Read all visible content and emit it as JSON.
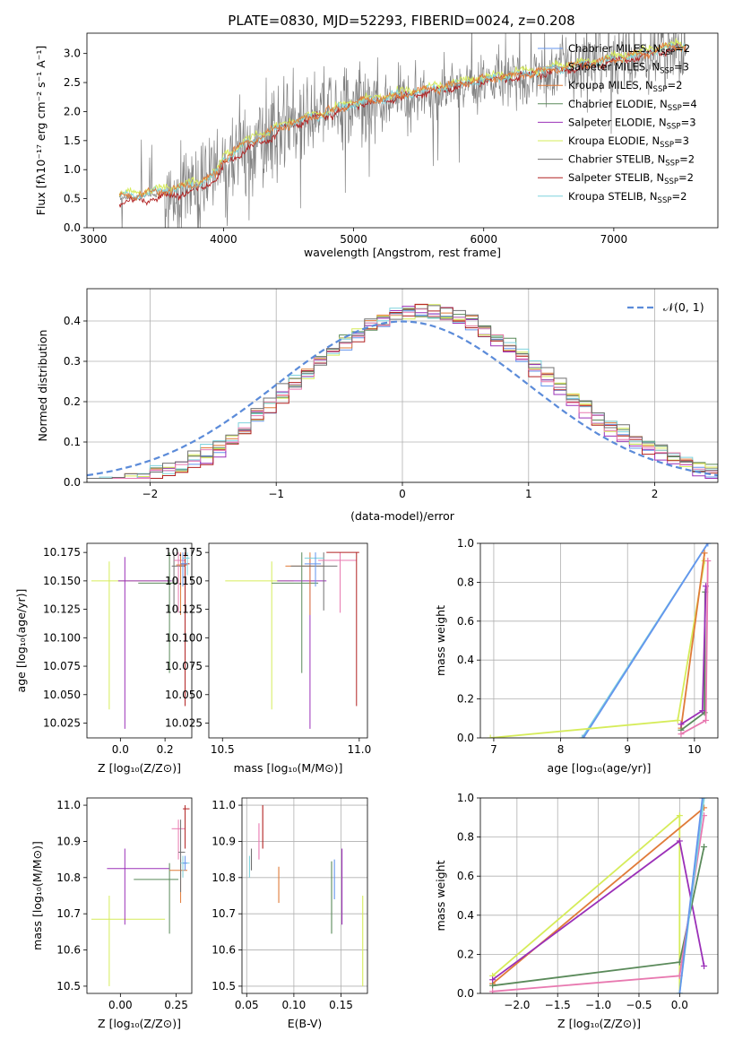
{
  "figure_title": "PLATE=0830, MJD=52293, FIBERID=0024, z=0.208",
  "colors": {
    "Chabrier MILES": "#6495ed",
    "Salpeter MILES": "#a8a8a8",
    "Kroupa MILES": "#e07b39",
    "Chabrier ELODIE": "#5a8a5a",
    "Salpeter ELODIE": "#9b30b8",
    "Kroupa ELODIE": "#d6ec5a",
    "Chabrier STELIB": "#707070",
    "Salpeter STELIB": "#b22222",
    "Kroupa STELIB": "#7fd3dd",
    "pink": "#e879b0",
    "gauss": "#5b8bd9"
  },
  "chart_data": [
    {
      "id": "spectrum",
      "type": "line",
      "title": "PLATE=0830, MJD=52293, FIBERID=0024, z=0.208",
      "xlabel": "wavelength [Angstrom, rest frame]",
      "ylabel": "Flux [fλ10⁻¹⁷ erg cm⁻² s⁻¹ A⁻¹]",
      "xlim": [
        2950,
        7800
      ],
      "ylim": [
        0,
        3.35
      ],
      "xticks": [
        "3000",
        "4000",
        "5000",
        "6000",
        "7000"
      ],
      "yticks": [
        "0.0",
        "0.5",
        "1.0",
        "1.5",
        "2.0",
        "2.5",
        "3.0"
      ],
      "legend_position": "top-right",
      "legend": [
        {
          "label": "Chabrier MILES, N",
          "sub": "SSP",
          "tail": "=2"
        },
        {
          "label": "Salpeter MILES, N",
          "sub": "SSP",
          "tail": "=3"
        },
        {
          "label": "Kroupa MILES, N",
          "sub": "SSP",
          "tail": "=2"
        },
        {
          "label": "Chabrier ELODIE, N",
          "sub": "SSP",
          "tail": "=4"
        },
        {
          "label": "Salpeter ELODIE, N",
          "sub": "SSP",
          "tail": "=3"
        },
        {
          "label": "Kroupa ELODIE, N",
          "sub": "SSP",
          "tail": "=3"
        },
        {
          "label": "Chabrier STELIB, N",
          "sub": "SSP",
          "tail": "=2"
        },
        {
          "label": "Salpeter STELIB, N",
          "sub": "SSP",
          "tail": "=2"
        },
        {
          "label": "Kroupa STELIB, N",
          "sub": "SSP",
          "tail": "=2"
        }
      ],
      "continuum_points": [
        [
          3200,
          0.5
        ],
        [
          3500,
          0.58
        ],
        [
          3800,
          0.72
        ],
        [
          3950,
          0.9
        ],
        [
          4000,
          1.15
        ],
        [
          4200,
          1.45
        ],
        [
          4500,
          1.75
        ],
        [
          4800,
          1.95
        ],
        [
          5000,
          2.1
        ],
        [
          5300,
          2.22
        ],
        [
          5600,
          2.35
        ],
        [
          5900,
          2.48
        ],
        [
          6200,
          2.58
        ],
        [
          6500,
          2.68
        ],
        [
          6800,
          2.78
        ],
        [
          7100,
          2.9
        ],
        [
          7400,
          3.05
        ],
        [
          7550,
          3.1
        ]
      ]
    },
    {
      "id": "residuals",
      "type": "line",
      "xlabel": "(data-model)/error",
      "ylabel": "Normed distribution",
      "xlim": [
        -2.5,
        2.5
      ],
      "ylim": [
        0,
        0.48
      ],
      "xticks": [
        "−2",
        "−1",
        "0",
        "1",
        "2"
      ],
      "yticks": [
        "0.0",
        "0.1",
        "0.2",
        "0.3",
        "0.4"
      ],
      "grid": true,
      "legend_position": "top-right",
      "legend": "𝒩(0, 1)",
      "gaussian": {
        "mean": 0,
        "sigma": 1
      },
      "hist_bin_width": 0.1
    },
    {
      "id": "z_age",
      "type": "scatter",
      "xlabel": "Z [log₁₀(Z/Z⊙)]",
      "ylabel": "age  [log₁₀(age/yr)]",
      "xlim": [
        -0.15,
        0.32
      ],
      "ylim": [
        10.012,
        10.183
      ],
      "xticks": [
        "0.0",
        "0.2"
      ],
      "yticks": [
        "10.025",
        "10.050",
        "10.075",
        "10.100",
        "10.125",
        "10.150",
        "10.175"
      ],
      "points": [
        {
          "c": "Kroupa ELODIE",
          "x": -0.05,
          "y": 10.15,
          "xl": -0.13,
          "xh": 0.22,
          "yl": 10.037,
          "yh": 10.167
        },
        {
          "c": "Salpeter ELODIE",
          "x": 0.02,
          "y": 10.15,
          "xl": -0.01,
          "xh": 0.23,
          "yl": 10.02,
          "yh": 10.171
        },
        {
          "c": "Chabrier ELODIE",
          "x": 0.22,
          "y": 10.148,
          "xl": 0.08,
          "xh": 0.26,
          "yl": 10.069,
          "yh": 10.175
        },
        {
          "c": "Chabrier STELIB",
          "x": 0.24,
          "y": 10.163,
          "xl": 0.23,
          "xh": 0.29,
          "yl": 10.124,
          "yh": 10.175
        },
        {
          "c": "pink",
          "x": 0.26,
          "y": 10.168,
          "xl": 0.24,
          "xh": 0.29,
          "yl": 10.122,
          "yh": 10.175
        },
        {
          "c": "Kroupa MILES",
          "x": 0.27,
          "y": 10.164,
          "xl": 0.25,
          "xh": 0.3,
          "yl": 10.12,
          "yh": 10.175
        },
        {
          "c": "Salpeter STELIB",
          "x": 0.29,
          "y": 10.165,
          "xl": 0.27,
          "xh": 0.31,
          "yl": 10.04,
          "yh": 10.175
        },
        {
          "c": "Kroupa STELIB",
          "x": 0.3,
          "y": 10.17,
          "xl": 0.28,
          "xh": 0.31,
          "yl": 10.155,
          "yh": 10.175
        },
        {
          "c": "Chabrier MILES",
          "x": 0.28,
          "y": 10.165,
          "xl": 0.27,
          "xh": 0.3,
          "yl": 10.145,
          "yh": 10.175
        }
      ]
    },
    {
      "id": "mass_age",
      "type": "scatter",
      "xlabel": "mass [log₁₀(M/M⊙)]",
      "xlim": [
        10.45,
        11.03
      ],
      "ylim": [
        10.012,
        10.183
      ],
      "xticks": [
        "10.5",
        "11.0"
      ],
      "yticks": [
        "10.025",
        "10.050",
        "10.075",
        "10.100",
        "10.125",
        "10.150",
        "10.175"
      ],
      "points": [
        {
          "c": "Kroupa ELODIE",
          "x": 10.68,
          "y": 10.15,
          "xl": 10.51,
          "xh": 10.76,
          "yl": 10.037,
          "yh": 10.167
        },
        {
          "c": "Salpeter ELODIE",
          "x": 10.82,
          "y": 10.15,
          "xl": 10.7,
          "xh": 10.88,
          "yl": 10.02,
          "yh": 10.171
        },
        {
          "c": "Chabrier ELODIE",
          "x": 10.79,
          "y": 10.148,
          "xl": 10.68,
          "xh": 10.85,
          "yl": 10.069,
          "yh": 10.175
        },
        {
          "c": "Kroupa MILES",
          "x": 10.82,
          "y": 10.163,
          "xl": 10.73,
          "xh": 10.87,
          "yl": 10.12,
          "yh": 10.175
        },
        {
          "c": "Chabrier STELIB",
          "x": 10.87,
          "y": 10.163,
          "xl": 10.75,
          "xh": 10.92,
          "yl": 10.124,
          "yh": 10.175
        },
        {
          "c": "pink",
          "x": 10.93,
          "y": 10.168,
          "xl": 10.85,
          "xh": 10.99,
          "yl": 10.122,
          "yh": 10.175
        },
        {
          "c": "Salpeter STELIB",
          "x": 10.99,
          "y": 10.175,
          "xl": 10.88,
          "xh": 11.0,
          "yl": 10.04,
          "yh": 10.175
        },
        {
          "c": "Kroupa STELIB",
          "x": 10.84,
          "y": 10.17,
          "xl": 10.8,
          "xh": 10.87,
          "yl": 10.155,
          "yh": 10.175
        },
        {
          "c": "Chabrier MILES",
          "x": 10.84,
          "y": 10.165,
          "xl": 10.8,
          "xh": 10.86,
          "yl": 10.145,
          "yh": 10.175
        }
      ]
    },
    {
      "id": "age_weight",
      "type": "line",
      "xlabel": "age  [log₁₀(age/yr)]",
      "ylabel": "mass weight",
      "xlim": [
        6.8,
        10.35
      ],
      "ylim": [
        0,
        1
      ],
      "xticks": [
        "7",
        "8",
        "9",
        "10"
      ],
      "yticks": [
        "0.0",
        "0.2",
        "0.4",
        "0.6",
        "0.8",
        "1.0"
      ],
      "grid": true,
      "series": [
        {
          "c": "Kroupa STELIB",
          "pts": [
            [
              8.32,
              0
            ],
            [
              10.2,
              1.0
            ]
          ]
        },
        {
          "c": "Chabrier MILES",
          "pts": [
            [
              8.34,
              0
            ],
            [
              10.2,
              1.0
            ]
          ]
        },
        {
          "c": "Kroupa ELODIE",
          "pts": [
            [
              6.95,
              0
            ],
            [
              9.75,
              0.09
            ],
            [
              10.15,
              0.91
            ]
          ]
        },
        {
          "c": "Kroupa MILES",
          "pts": [
            [
              9.8,
              0.05
            ],
            [
              10.15,
              0.95
            ]
          ]
        },
        {
          "c": "Chabrier ELODIE",
          "pts": [
            [
              9.8,
              0.04
            ],
            [
              10.15,
              0.13
            ],
            [
              10.16,
              0.75
            ]
          ]
        },
        {
          "c": "Salpeter ELODIE",
          "pts": [
            [
              9.8,
              0.07
            ],
            [
              10.12,
              0.14
            ],
            [
              10.17,
              0.78
            ]
          ]
        },
        {
          "c": "pink",
          "pts": [
            [
              9.8,
              0.02
            ],
            [
              10.17,
              0.09
            ],
            [
              10.2,
              0.91
            ]
          ]
        }
      ]
    },
    {
      "id": "z_mass",
      "type": "scatter",
      "xlabel": "Z [log₁₀(Z/Z⊙)]",
      "ylabel": "mass [log₁₀(M/M⊙)]",
      "xlim": [
        -0.15,
        0.32
      ],
      "ylim": [
        10.48,
        11.02
      ],
      "xticks": [
        "0.00",
        "0.25"
      ],
      "yticks": [
        "10.5",
        "10.6",
        "10.7",
        "10.8",
        "10.9",
        "11.0"
      ],
      "points": [
        {
          "c": "Kroupa ELODIE",
          "x": -0.05,
          "y": 10.685,
          "xl": -0.13,
          "xh": 0.2,
          "yl": 10.5,
          "yh": 10.75
        },
        {
          "c": "Salpeter ELODIE",
          "x": 0.02,
          "y": 10.825,
          "xl": -0.06,
          "xh": 0.22,
          "yl": 10.67,
          "yh": 10.88
        },
        {
          "c": "Chabrier ELODIE",
          "x": 0.22,
          "y": 10.795,
          "xl": 0.06,
          "xh": 0.26,
          "yl": 10.645,
          "yh": 10.84
        },
        {
          "c": "Kroupa MILES",
          "x": 0.27,
          "y": 10.82,
          "xl": 0.22,
          "xh": 0.3,
          "yl": 10.73,
          "yh": 10.85
        },
        {
          "c": "pink",
          "x": 0.26,
          "y": 10.935,
          "xl": 0.23,
          "xh": 0.29,
          "yl": 10.85,
          "yh": 10.96
        },
        {
          "c": "Chabrier STELIB",
          "x": 0.27,
          "y": 10.87,
          "xl": 0.26,
          "xh": 0.29,
          "yl": 10.76,
          "yh": 10.96
        },
        {
          "c": "Salpeter STELIB",
          "x": 0.29,
          "y": 10.99,
          "xl": 0.28,
          "xh": 0.31,
          "yl": 10.88,
          "yh": 11.0
        },
        {
          "c": "Kroupa STELIB",
          "x": 0.28,
          "y": 10.84,
          "xl": 0.27,
          "xh": 0.31,
          "yl": 10.8,
          "yh": 10.86
        },
        {
          "c": "Chabrier MILES",
          "x": 0.29,
          "y": 10.84,
          "xl": 0.28,
          "xh": 0.3,
          "yl": 10.82,
          "yh": 10.86
        }
      ]
    },
    {
      "id": "ebv_mass",
      "type": "scatter",
      "xlabel": "E(B-V)",
      "xlim": [
        0.045,
        0.178
      ],
      "ylim": [
        10.48,
        11.02
      ],
      "xticks": [
        "0.05",
        "0.10",
        "0.15"
      ],
      "yticks": [
        "10.5",
        "10.6",
        "10.7",
        "10.8",
        "10.9",
        "11.0"
      ],
      "grid": true,
      "vlines": [
        {
          "c": "Kroupa STELIB",
          "x": 0.053,
          "yl": 10.8,
          "yh": 10.86
        },
        {
          "c": "Chabrier STELIB",
          "x": 0.055,
          "yl": 10.82,
          "yh": 10.88
        },
        {
          "c": "pink",
          "x": 0.063,
          "yl": 10.85,
          "yh": 10.95
        },
        {
          "c": "Salpeter STELIB",
          "x": 0.067,
          "yl": 10.88,
          "yh": 11.0
        },
        {
          "c": "Kroupa MILES",
          "x": 0.084,
          "yl": 10.73,
          "yh": 10.83
        },
        {
          "c": "Chabrier ELODIE",
          "x": 0.14,
          "yl": 10.645,
          "yh": 10.845
        },
        {
          "c": "Chabrier MILES",
          "x": 0.143,
          "yl": 10.74,
          "yh": 10.85
        },
        {
          "c": "Salpeter ELODIE",
          "x": 0.151,
          "yl": 10.67,
          "yh": 10.88
        },
        {
          "c": "Kroupa ELODIE",
          "x": 0.173,
          "yl": 10.5,
          "yh": 10.75
        }
      ]
    },
    {
      "id": "z_weight",
      "type": "line",
      "xlabel": "Z [log₁₀(Z/Z⊙)]",
      "ylabel": "mass weight",
      "xlim": [
        -2.45,
        0.47
      ],
      "ylim": [
        0,
        1
      ],
      "xticks": [
        "−2.0",
        "−1.5",
        "−1.0",
        "−0.5",
        "0.0"
      ],
      "yticks": [
        "0.0",
        "0.2",
        "0.4",
        "0.6",
        "0.8",
        "1.0"
      ],
      "grid": true,
      "series": [
        {
          "c": "Kroupa ELODIE",
          "pts": [
            [
              -2.3,
              0.09
            ],
            [
              0.0,
              0.91
            ],
            [
              0.0,
              0.0
            ]
          ]
        },
        {
          "c": "Kroupa MILES",
          "pts": [
            [
              -2.3,
              0.05
            ],
            [
              0.3,
              0.95
            ]
          ]
        },
        {
          "c": "Salpeter ELODIE",
          "pts": [
            [
              -2.3,
              0.07
            ],
            [
              0.0,
              0.78
            ],
            [
              0.3,
              0.14
            ]
          ]
        },
        {
          "c": "Chabrier ELODIE",
          "pts": [
            [
              -2.3,
              0.04
            ],
            [
              0.0,
              0.16
            ],
            [
              0.3,
              0.75
            ]
          ]
        },
        {
          "c": "pink",
          "pts": [
            [
              -2.3,
              0.01
            ],
            [
              0.0,
              0.09
            ],
            [
              0.3,
              0.91
            ]
          ]
        },
        {
          "c": "Kroupa STELIB",
          "pts": [
            [
              0.0,
              0.0
            ],
            [
              0.3,
              1.0
            ]
          ]
        },
        {
          "c": "Chabrier MILES",
          "pts": [
            [
              0.0,
              0.0
            ],
            [
              0.28,
              1.0
            ]
          ]
        }
      ]
    }
  ]
}
